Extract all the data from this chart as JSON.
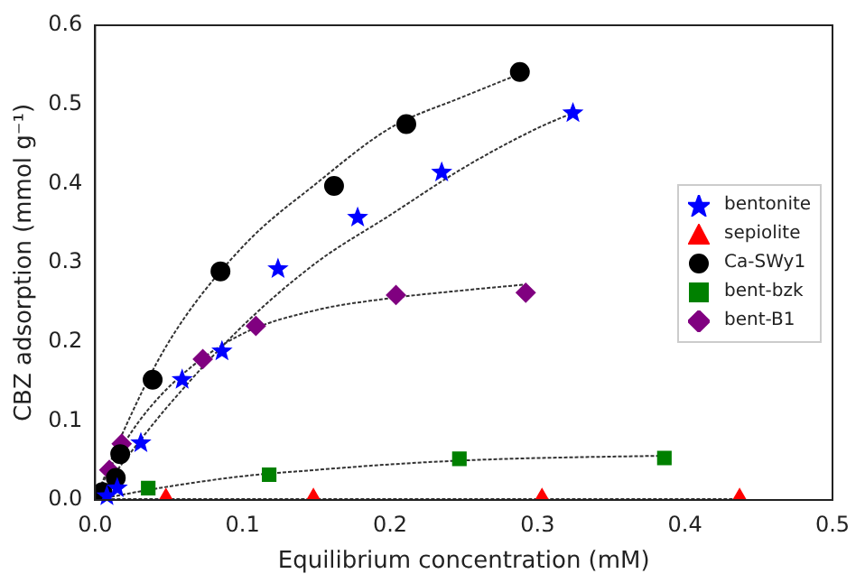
{
  "chart_data": {
    "type": "scatter",
    "xlabel": "Equilibrium concentration (mM)",
    "ylabel": "CBZ adsorption (mmol g⁻¹)",
    "xlim": [
      0,
      0.5
    ],
    "ylim": [
      0,
      0.6
    ],
    "xticks": [
      {
        "value": 0,
        "label": "0.0"
      },
      {
        "value": 0.1,
        "label": "0.1"
      },
      {
        "value": 0.2,
        "label": "0.2"
      },
      {
        "value": 0.3,
        "label": "0.3"
      },
      {
        "value": 0.4,
        "label": "0.4"
      },
      {
        "value": 0.5,
        "label": "0.5"
      }
    ],
    "yticks": [
      {
        "value": 0,
        "label": "0.0"
      },
      {
        "value": 0.1,
        "label": "0.1"
      },
      {
        "value": 0.2,
        "label": "0.2"
      },
      {
        "value": 0.3,
        "label": "0.3"
      },
      {
        "value": 0.4,
        "label": "0.4"
      },
      {
        "value": 0.5,
        "label": "0.5"
      },
      {
        "value": 0.6,
        "label": "0.6"
      }
    ],
    "grid": false,
    "legend": "right",
    "series": [
      {
        "type": "line",
        "color": "#333333",
        "marker": "none",
        "line_style": "dotted",
        "x": [
          0,
          0.02,
          0.05,
          0.1,
          0.15,
          0.2,
          0.25,
          0.29
        ],
        "values": [
          0,
          0.09,
          0.2,
          0.32,
          0.4,
          0.47,
          0.51,
          0.54
        ]
      },
      {
        "type": "line",
        "color": "#333333",
        "marker": "none",
        "line_style": "dotted",
        "x": [
          0,
          0.02,
          0.05,
          0.1,
          0.15,
          0.2,
          0.25,
          0.3,
          0.325
        ],
        "values": [
          0,
          0.05,
          0.12,
          0.22,
          0.3,
          0.36,
          0.42,
          0.47,
          0.49
        ]
      },
      {
        "type": "line",
        "color": "#333333",
        "marker": "none",
        "line_style": "dotted",
        "x": [
          0,
          0.01,
          0.03,
          0.06,
          0.1,
          0.15,
          0.2,
          0.25,
          0.29
        ],
        "values": [
          0,
          0.04,
          0.1,
          0.16,
          0.21,
          0.24,
          0.255,
          0.265,
          0.272
        ]
      },
      {
        "type": "line",
        "color": "#333333",
        "marker": "none",
        "line_style": "dotted",
        "x": [
          0,
          0.04,
          0.1,
          0.15,
          0.2,
          0.25,
          0.3,
          0.39
        ],
        "values": [
          0,
          0.014,
          0.03,
          0.038,
          0.045,
          0.05,
          0.053,
          0.056
        ]
      },
      {
        "type": "line",
        "color": "#333333",
        "marker": "none",
        "line_style": "dotted",
        "x": [
          0,
          0.44
        ],
        "values": [
          0.001,
          0.001
        ]
      },
      {
        "name": "bentonite",
        "color": "#0000ff",
        "marker": "star",
        "x": [
          0.008,
          0.015,
          0.031,
          0.059,
          0.086,
          0.124,
          0.178,
          0.235,
          0.324
        ],
        "values": [
          0.005,
          0.015,
          0.072,
          0.152,
          0.188,
          0.292,
          0.357,
          0.414,
          0.489
        ]
      },
      {
        "name": "sepiolite",
        "color": "#ff0000",
        "marker": "triangle",
        "x": [
          0.048,
          0.148,
          0.303,
          0.437
        ],
        "values": [
          0.002,
          0.002,
          0.002,
          0.002
        ]
      },
      {
        "name": "Ca-SWy1",
        "color": "#000000",
        "marker": "circle",
        "x": [
          0.005,
          0.014,
          0.017,
          0.039,
          0.085,
          0.162,
          0.211,
          0.288
        ],
        "values": [
          0.01,
          0.028,
          0.058,
          0.152,
          0.289,
          0.397,
          0.475,
          0.541
        ]
      },
      {
        "name": "bent-bzk",
        "color": "#008000",
        "marker": "square",
        "x": [
          0.036,
          0.118,
          0.247,
          0.386
        ],
        "values": [
          0.015,
          0.032,
          0.052,
          0.053
        ]
      },
      {
        "name": "bent-B1",
        "color": "#800080",
        "marker": "diamond",
        "x": [
          0.0096,
          0.018,
          0.073,
          0.109,
          0.204,
          0.292
        ],
        "values": [
          0.038,
          0.071,
          0.178,
          0.22,
          0.259,
          0.262
        ]
      }
    ]
  }
}
